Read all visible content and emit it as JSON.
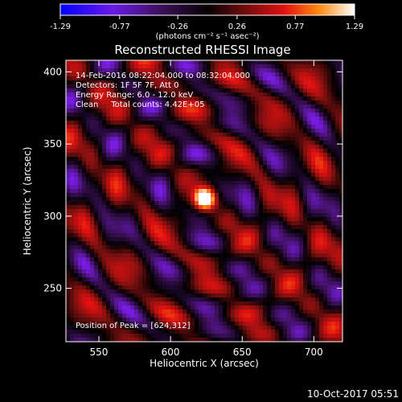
{
  "chart_data": {
    "type": "heatmap",
    "title": "Reconstructed RHESSI Image",
    "xlabel": "Heliocentric X (arcsec)",
    "ylabel": "Heliocentric Y (arcsec)",
    "xlim": [
      527,
      720
    ],
    "ylim": [
      213,
      408
    ],
    "x_ticks": [
      "550",
      "600",
      "650",
      "700"
    ],
    "x_tick_values": [
      550,
      600,
      650,
      700
    ],
    "y_ticks": [
      "250",
      "300",
      "350",
      "400"
    ],
    "y_tick_values": [
      250,
      300,
      350,
      400
    ],
    "colorbar": {
      "label": "(photons cm⁻² s⁻¹ asec⁻²)",
      "range": [
        -1.29,
        1.29
      ],
      "tick_labels": [
        "-1.29",
        "-0.77",
        "-0.26",
        "0.26",
        "0.77",
        "1.29"
      ],
      "tick_values": [
        -1.29,
        -0.77,
        -0.26,
        0.26,
        0.77,
        1.29
      ],
      "colors": [
        "#0000ff",
        "#7a1de6",
        "#3a0f55",
        "#000000",
        "#7a1010",
        "#e01010",
        "#ff7a10",
        "#ffffff"
      ]
    },
    "annotations": [
      "14-Feb-2016 08:22:04.000 to 08:32:04.000",
      "Detectors: 1F 5F 7F, Att 0",
      "Energy Range: 6.0 - 12.0 keV",
      "Clean     Total counts: 4.42E+05"
    ],
    "peak_label": "Position of Peak = [624,312]",
    "peak": [
      624,
      312
    ],
    "peak_value": 1.29
  },
  "footer": {
    "date": "10-Oct-2017 05:51"
  }
}
